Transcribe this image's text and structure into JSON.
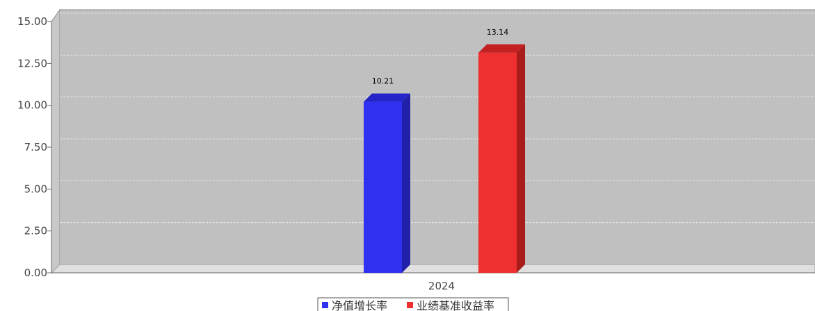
{
  "chart_data": {
    "type": "bar",
    "categories": [
      "2024"
    ],
    "series": [
      {
        "name": "净值增长率",
        "values": [
          10.21
        ],
        "color": "#3030f0",
        "side_color": "#2020a8",
        "top_color": "#2424c8"
      },
      {
        "name": "业绩基准收益率",
        "values": [
          13.14
        ],
        "color": "#ee3030",
        "side_color": "#a81c1c",
        "top_color": "#c42222"
      }
    ],
    "ylim": [
      0,
      15
    ],
    "yticks": [
      "0.00",
      "2.50",
      "5.00",
      "7.50",
      "10.00",
      "12.50",
      "15.00"
    ],
    "data_labels": [
      "10.21",
      "13.14"
    ],
    "grid": true,
    "legend_position": "bottom-center",
    "plot_background": "#c0c0c0",
    "title": "",
    "xlabel": "",
    "ylabel": ""
  }
}
